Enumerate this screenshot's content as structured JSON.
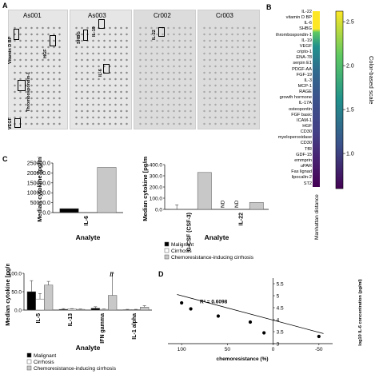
{
  "panels": {
    "a": "A",
    "b": "B",
    "c": "C",
    "d": "D"
  },
  "blots": [
    "As001",
    "As003",
    "Cr002",
    "Cr003"
  ],
  "blot_annotations": [
    "Vitamin D BP",
    "HGF",
    "Thrombospondin-1",
    "VEGF",
    "SHBG",
    "IL-19",
    "IL-6",
    "IL-22"
  ],
  "heatmap": {
    "rows": [
      "IL-22",
      "vitamin D BP",
      "IL-6",
      "SHBG",
      "thrombospondin-1",
      "IL-19",
      "VEGF",
      "cripto-1",
      "ENA-78",
      "serpin E1",
      "PDGF-AA",
      "FGF-19",
      "IL-3",
      "MCP-1",
      "RAGE",
      "growth hormone",
      "IL-17A",
      "osteopontin",
      "FGF basic",
      "ICAM-1",
      "HGF",
      "CD30",
      "myeloperoxidase",
      "CD30",
      "TfR",
      "GDF-15",
      "emmprin",
      "uPAR",
      "Fas lignad",
      "lipocalin-2",
      "ST2"
    ],
    "xlabel": "Manhattan distance",
    "colorbar_label": "Color-based scale",
    "colorbar_ticks": [
      "2.5",
      "2.0",
      "1.5",
      "1.0"
    ],
    "colorbar_range": [
      0.6,
      2.62
    ],
    "colors": [
      "#fde725",
      "#5ec962",
      "#21918c",
      "#3b528b",
      "#440154"
    ]
  },
  "chart_data": [
    {
      "type": "bar",
      "panel": "C-top-left",
      "categories": [
        "IL-6"
      ],
      "series": [
        {
          "name": "Malignant",
          "values": [
            20000
          ]
        },
        {
          "name": "Cirrhosis",
          "values": [
            0
          ]
        },
        {
          "name": "Chemoresistance-inducing cirrhosis",
          "values": [
            228000
          ]
        }
      ],
      "yticks": [
        "0.0",
        "50000.0",
        "100000.0",
        "150000.0",
        "200000.0",
        "250000.0"
      ],
      "ylim": [
        0,
        250000
      ],
      "ylabel": "Median cytokine [pg/ml]",
      "xlabel": "Analyte"
    },
    {
      "type": "bar",
      "panel": "C-top-right",
      "categories": [
        "G-CSF (CSF-3)",
        "IL-22"
      ],
      "series": [
        {
          "name": "Malignant",
          "values": [
            1,
            0
          ]
        },
        {
          "name": "Cirrhosis",
          "values": [
            2,
            0
          ]
        },
        {
          "name": "Chemoresistance-inducing cirrhosis",
          "values": [
            330,
            62
          ]
        }
      ],
      "errors": [
        [
          40,
          0
        ],
        [
          0,
          0
        ],
        [
          0,
          0
        ]
      ],
      "nd_labels": [
        "ND",
        "ND"
      ],
      "yticks": [
        "0.0",
        "100.0",
        "200.0",
        "300.0",
        "400.0"
      ],
      "ylim": [
        0,
        400
      ],
      "ylabel": "Median cytokine [pg/ml]",
      "xlabel": "Analyte",
      "legend": [
        "Malignant",
        "Cirrhosis",
        "Chemoresistance-inducing cirrhosis"
      ]
    },
    {
      "type": "bar",
      "panel": "C-bottom",
      "categories": [
        "IL-5",
        "IL-13",
        "IFN gamma",
        "IL-1 alpha"
      ],
      "series": [
        {
          "name": "Malignant",
          "values": [
            50,
            2,
            5,
            1
          ]
        },
        {
          "name": "Cirrhosis",
          "values": [
            30,
            3,
            2,
            1
          ]
        },
        {
          "name": "Chemoresistance-inducing cirrhosis",
          "values": [
            68,
            2,
            40,
            8
          ]
        }
      ],
      "errors": [
        [
          30,
          2,
          4,
          1
        ],
        [
          15,
          1,
          1,
          1
        ],
        [
          10,
          1,
          60,
          4
        ]
      ],
      "yticks": [
        "0.0",
        "50.0",
        "100.0"
      ],
      "ylim": [
        0,
        100
      ],
      "break_mark": "//",
      "ylabel": "Median cytokine [pg/ml]",
      "xlabel": "Analyte",
      "legend": [
        "Malignant",
        "Cirrhosis",
        "Chemoresistance-inducing cirrhosis"
      ]
    },
    {
      "type": "scatter",
      "panel": "D",
      "points": [
        {
          "x": 100,
          "y": 4.7
        },
        {
          "x": 90,
          "y": 4.45
        },
        {
          "x": 60,
          "y": 4.15
        },
        {
          "x": 25,
          "y": 3.9
        },
        {
          "x": 10,
          "y": 3.45
        },
        {
          "x": -50,
          "y": 3.3
        }
      ],
      "trend": {
        "x1": 105,
        "y1": 5.05,
        "x2": -55,
        "y2": 3.42
      },
      "r2": "R² = 0.6098",
      "xticks": [
        "100",
        "50",
        "0",
        "-50"
      ],
      "xtick_values": [
        100,
        50,
        0,
        -50
      ],
      "yticks": [
        "5.5",
        "5",
        "4.5",
        "4",
        "3.5",
        "3"
      ],
      "ytick_values": [
        5.5,
        5,
        4.5,
        4,
        3.5,
        3
      ],
      "xlim": [
        115,
        -65
      ],
      "ylim": [
        3,
        5.6
      ],
      "xlabel": "chemoresistance (%)",
      "ylabel": "log10 IL-6 concentration (pg/ml)"
    }
  ]
}
